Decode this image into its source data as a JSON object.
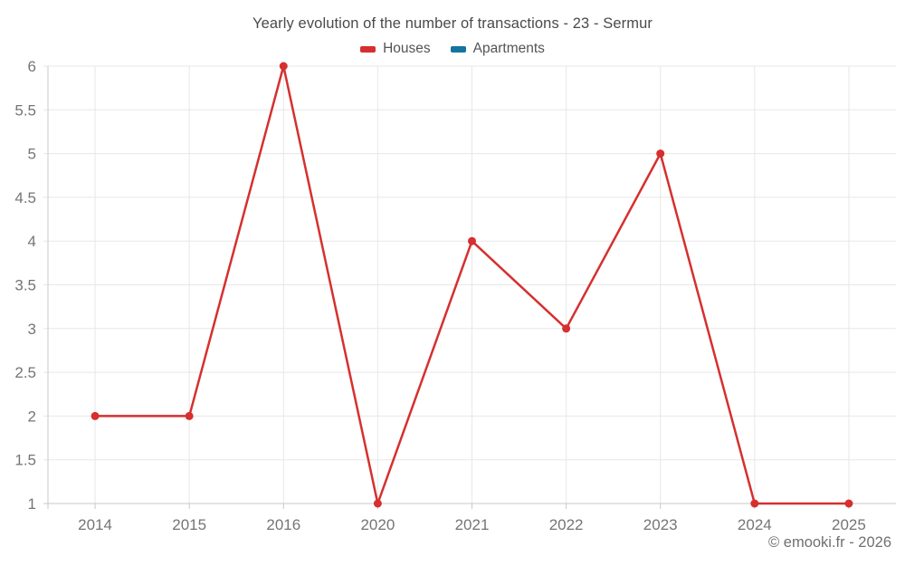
{
  "chart_data": {
    "type": "line",
    "title": "Yearly evolution of the number of transactions - 23 - Sermur",
    "categories": [
      "2014",
      "2015",
      "2016",
      "2020",
      "2021",
      "2022",
      "2023",
      "2024",
      "2025"
    ],
    "series": [
      {
        "name": "Houses",
        "color": "#d5302f",
        "values": [
          2,
          2,
          6,
          1,
          4,
          3,
          5,
          1,
          1
        ]
      },
      {
        "name": "Apartments",
        "color": "#1473a0",
        "values": []
      }
    ],
    "xlabel": "",
    "ylabel": "",
    "ylim": [
      1,
      6
    ],
    "ytick_step": 0.5,
    "yticks": [
      "1",
      "1.5",
      "2",
      "2.5",
      "3",
      "3.5",
      "4",
      "4.5",
      "5",
      "5.5",
      "6"
    ],
    "grid": true,
    "legend_position": "top",
    "colors": {
      "grid_line": "#e7e7e7",
      "axis_line": "#c9c9c9",
      "axis_label": "#757575",
      "background": "#ffffff"
    }
  },
  "footer": {
    "text": "© emooki.fr - 2026"
  }
}
